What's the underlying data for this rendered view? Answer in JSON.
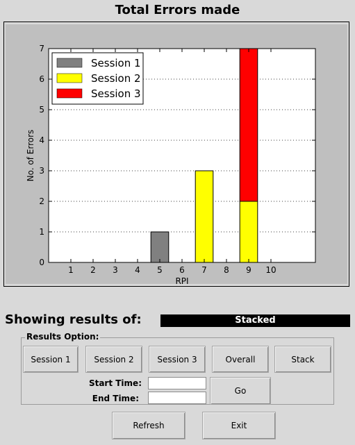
{
  "window": {
    "title": "Total Errors made"
  },
  "chart_data": {
    "type": "bar",
    "stacked": true,
    "x": [
      1,
      2,
      3,
      4,
      5,
      6,
      7,
      8,
      9,
      10
    ],
    "xlabel": "RPI",
    "ylabel": "No. of Errors",
    "xlim": [
      0,
      12
    ],
    "ylim": [
      0,
      7
    ],
    "yticks": [
      0,
      1,
      2,
      3,
      4,
      5,
      6,
      7
    ],
    "grid": "horizontal-dotted",
    "legend": "top-left",
    "series": [
      {
        "name": "Session 1",
        "color": "#808080",
        "values": [
          0,
          0,
          0,
          0,
          1,
          0,
          0,
          0,
          0,
          0
        ]
      },
      {
        "name": "Session 2",
        "color": "#ffff00",
        "values": [
          0,
          0,
          0,
          0,
          0,
          0,
          3,
          0,
          2,
          0
        ]
      },
      {
        "name": "Session 3",
        "color": "#ff0000",
        "values": [
          0,
          0,
          0,
          0,
          0,
          0,
          0,
          0,
          5,
          0
        ]
      }
    ]
  },
  "results": {
    "showing_label": "Showing results of:",
    "mode_value": "Stacked"
  },
  "options": {
    "group_label": "Results Option:",
    "session1_label": "Session 1",
    "session2_label": "Session 2",
    "session3_label": "Session 3",
    "overall_label": "Overall",
    "stack_label": "Stack",
    "start_time_label": "Start Time:",
    "end_time_label": "End Time:",
    "start_time_value": "",
    "end_time_value": "",
    "go_label": "Go"
  },
  "footer": {
    "refresh_label": "Refresh",
    "exit_label": "Exit"
  }
}
